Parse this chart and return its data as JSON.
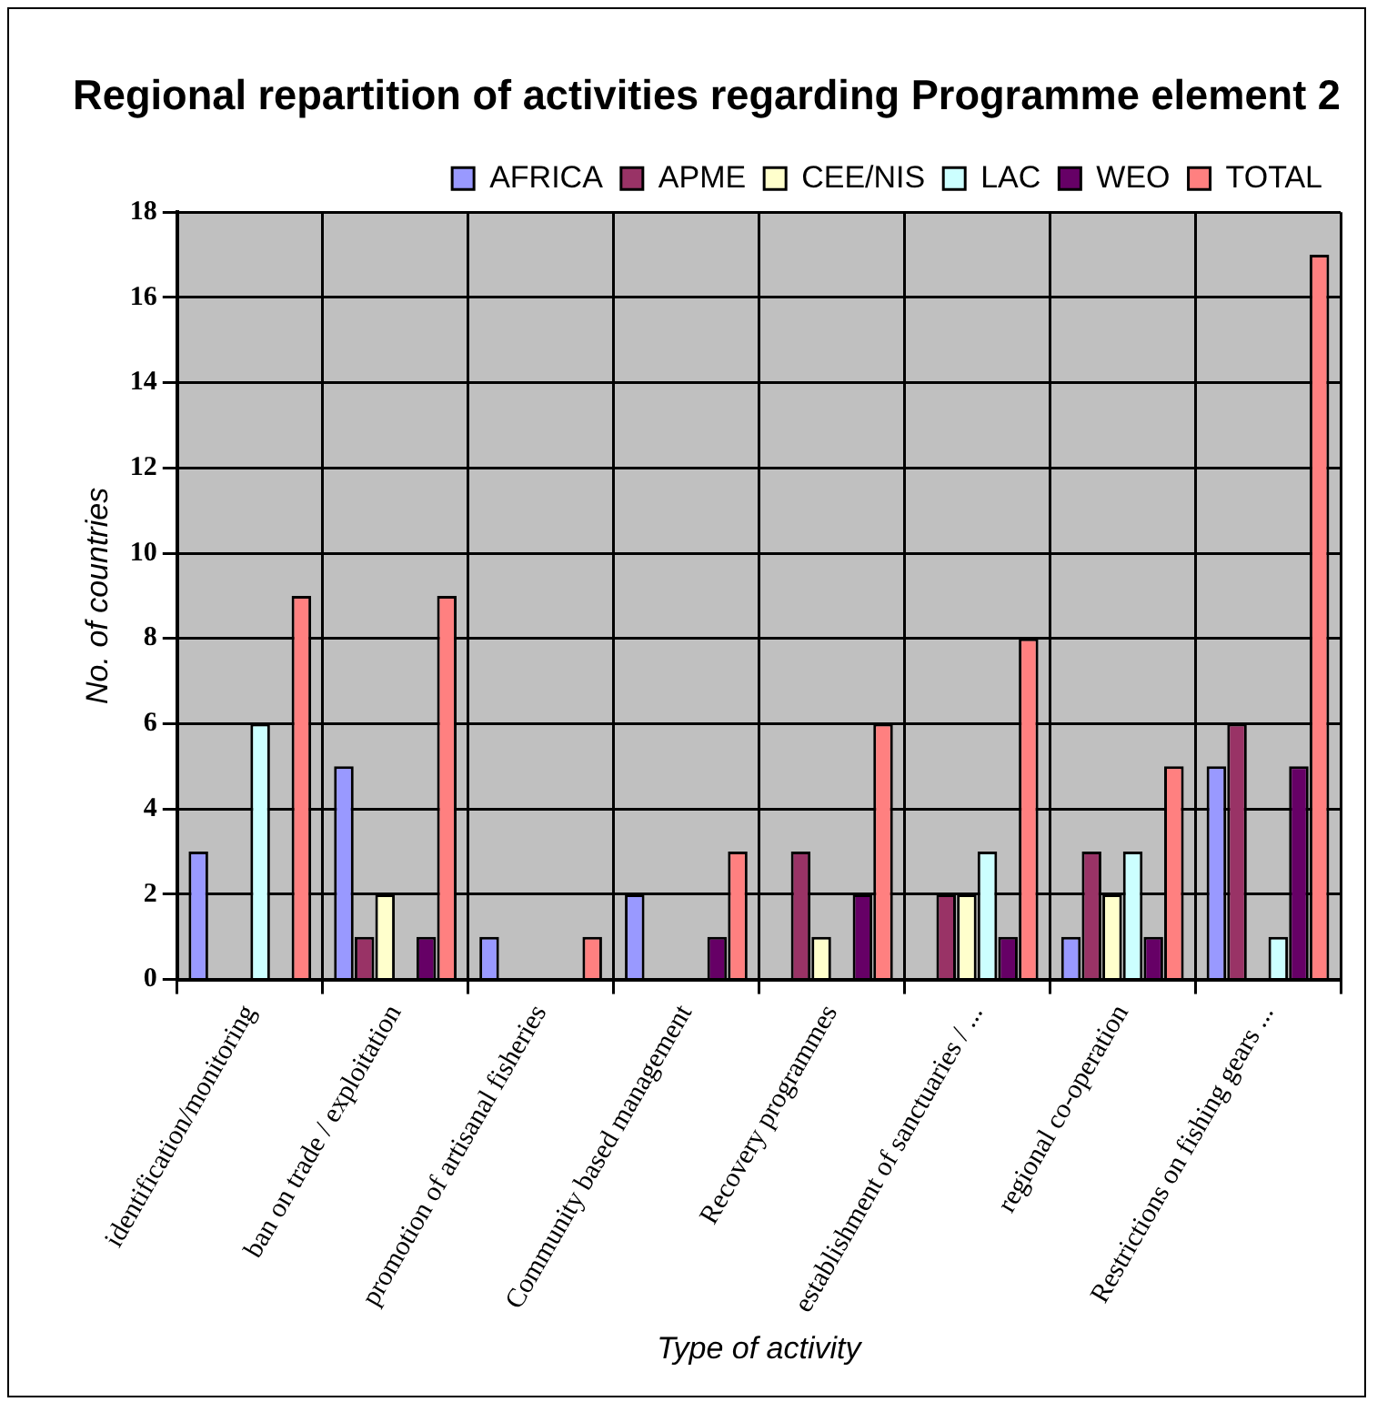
{
  "chart_data": {
    "type": "bar",
    "title": "Regional repartition of activities regarding Programme element 2",
    "xlabel": "Type of activity",
    "ylabel": "No. of countries",
    "categories": [
      "identification/monitoring",
      "ban on trade / exploitation",
      "promotion of artisanal fisheries",
      "Community based management",
      "Recovery programmes",
      "establishment of sanctuaries / ...",
      "regional co-operation",
      "Restrictions on fishing gears ..."
    ],
    "series": [
      {
        "name": "AFRICA",
        "color": "#9999ff",
        "values": [
          3,
          5,
          1,
          2,
          0,
          0,
          1,
          5
        ]
      },
      {
        "name": "APME",
        "color": "#993366",
        "values": [
          0,
          1,
          0,
          0,
          3,
          2,
          3,
          6
        ]
      },
      {
        "name": "CEE/NIS",
        "color": "#ffffcc",
        "values": [
          0,
          2,
          0,
          0,
          1,
          2,
          2,
          0
        ]
      },
      {
        "name": "LAC",
        "color": "#ccffff",
        "values": [
          6,
          0,
          0,
          0,
          0,
          3,
          3,
          1
        ]
      },
      {
        "name": "WEO",
        "color": "#660066",
        "values": [
          0,
          1,
          0,
          1,
          2,
          1,
          1,
          5
        ]
      },
      {
        "name": "TOTAL",
        "color": "#ff8080",
        "values": [
          9,
          9,
          1,
          3,
          6,
          8,
          5,
          17
        ]
      }
    ],
    "ylim": [
      0,
      18
    ],
    "yticks": [
      0,
      2,
      4,
      6,
      8,
      10,
      12,
      14,
      16,
      18
    ],
    "grid": true,
    "legend": "top"
  }
}
